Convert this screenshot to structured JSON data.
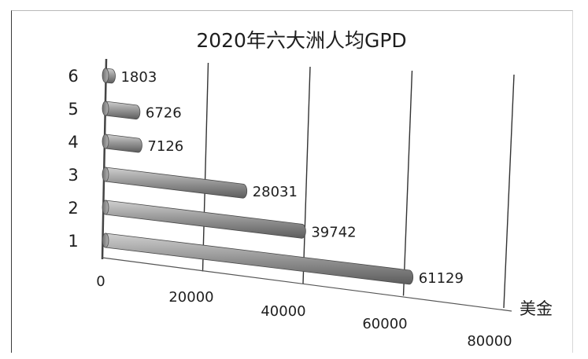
{
  "chart_data": {
    "type": "bar",
    "orientation": "horizontal",
    "title": "2020年六大洲人均GPD",
    "categories": [
      "1",
      "2",
      "3",
      "4",
      "5",
      "6"
    ],
    "values": [
      61129,
      39742,
      28031,
      7126,
      6726,
      1803
    ],
    "value_labels": [
      "61129",
      "39742",
      "28031",
      "7126",
      "6726",
      "1803"
    ],
    "xlabel": "美金",
    "ylabel": "",
    "xlim": [
      0,
      80000
    ],
    "x_ticks": [
      "0",
      "20000",
      "40000",
      "60000",
      "80000"
    ],
    "grid": true,
    "legend": "none",
    "style": "3d-cylinder",
    "bar_color": "#8f8f8f"
  }
}
